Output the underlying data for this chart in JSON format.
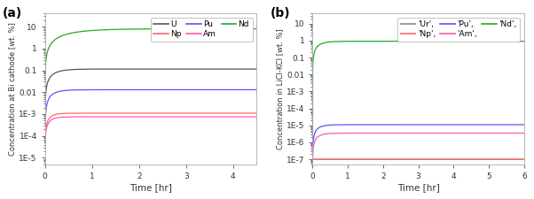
{
  "panel_a": {
    "label": "(a)",
    "xlabel": "Time [hr]",
    "ylabel": "Concentration at Bi cathode [wt. %]",
    "xlim": [
      0,
      4.5
    ],
    "ylim_log": [
      5e-06,
      40
    ],
    "curves": {
      "U": {
        "color": "#555555",
        "plateau": 0.115,
        "rate": 5.0,
        "start": 5e-05
      },
      "Np": {
        "color": "#FF6666",
        "plateau": 0.0011,
        "rate": 9.0,
        "start": 5e-05
      },
      "Pu": {
        "color": "#5555FF",
        "plateau": 0.013,
        "rate": 6.0,
        "start": 5e-05
      },
      "Am": {
        "color": "#FF55BB",
        "plateau": 0.00075,
        "rate": 9.0,
        "start": 5e-05
      },
      "Nd": {
        "color": "#22AA22",
        "plateau": 8.0,
        "rate": 1.8,
        "start": 5e-05
      }
    },
    "legend_order": [
      "U",
      "Np",
      "Pu",
      "Am",
      "Nd"
    ],
    "plot_order": [
      "Nd",
      "U",
      "Pu",
      "Np",
      "Am"
    ]
  },
  "panel_b": {
    "label": "(b)",
    "xlabel": "Time [hr]",
    "ylabel": "Concentration in LiCl-KCl [wt. %]",
    "xlim": [
      0,
      6
    ],
    "ylim_log": [
      5e-08,
      40
    ],
    "curves": {
      "Ur": {
        "color": "#888888",
        "plateau": 1e-07,
        "rate": 999,
        "start": 1e-07
      },
      "Np": {
        "color": "#FF6666",
        "plateau": 1e-07,
        "rate": 999,
        "start": 1e-07
      },
      "Pu": {
        "color": "#5555FF",
        "plateau": 1.1e-05,
        "rate": 6.0,
        "start": 1e-07
      },
      "Am": {
        "color": "#FF55BB",
        "plateau": 3.5e-06,
        "rate": 6.0,
        "start": 1e-07
      },
      "Nd": {
        "color": "#22AA22",
        "plateau": 0.92,
        "rate": 5.0,
        "start": 1e-07
      }
    },
    "legend_order": [
      "Ur",
      "Np",
      "Pu",
      "Am",
      "Nd"
    ],
    "legend_labels": [
      "'Ur',",
      "'Np',",
      "'Pu',",
      "'Am',",
      "'Nd',"
    ],
    "plot_order": [
      "Nd",
      "Pu",
      "Am",
      "Ur",
      "Np"
    ]
  },
  "figure_bg": "#ffffff",
  "axes_bg": "#ffffff"
}
